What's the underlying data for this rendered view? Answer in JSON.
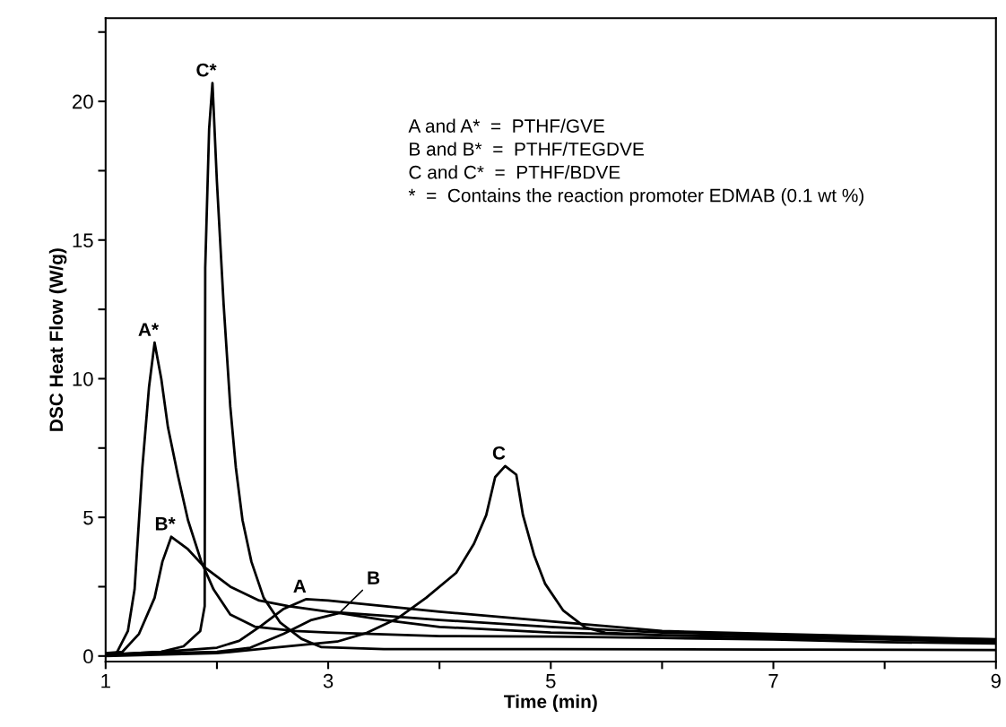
{
  "chart_data": {
    "type": "line",
    "xlabel": "Time (min)",
    "ylabel": "DSC Heat Flow (W/g)",
    "xlim": [
      1,
      9
    ],
    "ylim": [
      -0.2,
      23
    ],
    "xticks": [
      1,
      {
        "value": 2,
        "label": null
      },
      3,
      {
        "value": 4,
        "label": null
      },
      5,
      {
        "value": 6,
        "label": null
      },
      7,
      {
        "value": 8,
        "label": null
      },
      9
    ],
    "yticks": [
      0,
      {
        "value": 2.5,
        "label": null
      },
      5,
      {
        "value": 7.5,
        "label": null
      },
      10,
      {
        "value": 12.5,
        "label": null
      },
      15,
      {
        "value": 17.5,
        "label": null
      },
      20,
      {
        "value": 22.5,
        "label": null
      }
    ],
    "grid": false,
    "legend": false,
    "marker": "none",
    "line_style": "solid",
    "series": [
      {
        "name": "A*",
        "color": "#000000",
        "x": [
          1.0,
          1.1,
          1.2,
          1.26,
          1.33,
          1.39,
          1.44,
          1.5,
          1.56,
          1.65,
          1.74,
          1.86,
          1.97,
          2.12,
          2.34,
          2.7,
          3,
          4,
          5,
          6,
          7,
          8,
          9
        ],
        "values": [
          0.1,
          0.12,
          0.9,
          2.4,
          6.8,
          9.7,
          11.3,
          10.0,
          8.25,
          6.5,
          4.9,
          3.4,
          2.4,
          1.5,
          1.06,
          0.9,
          0.85,
          0.72,
          0.7,
          0.65,
          0.6,
          0.5,
          0.45
        ]
      },
      {
        "name": "B*",
        "color": "#000000",
        "x": [
          1.0,
          1.15,
          1.3,
          1.44,
          1.51,
          1.59,
          1.74,
          1.89,
          2.12,
          2.38,
          2.64,
          3.0,
          3.5,
          4,
          5,
          6,
          7,
          8,
          9
        ],
        "values": [
          0.1,
          0.15,
          0.8,
          2.1,
          3.4,
          4.3,
          3.85,
          3.2,
          2.5,
          2.0,
          1.8,
          1.6,
          1.45,
          1.3,
          1.05,
          0.85,
          0.75,
          0.65,
          0.6
        ]
      },
      {
        "name": "C*",
        "color": "#000000",
        "x": [
          1.0,
          1.5,
          1.7,
          1.85,
          1.89,
          1.895,
          1.93,
          1.96,
          2.0,
          2.06,
          2.12,
          2.17,
          2.23,
          2.31,
          2.42,
          2.57,
          2.76,
          2.94,
          3.5,
          5,
          7,
          9
        ],
        "values": [
          0.05,
          0.15,
          0.35,
          0.9,
          1.8,
          14,
          19,
          20.66,
          17.1,
          12.7,
          9.0,
          6.8,
          4.9,
          3.4,
          2.1,
          1.2,
          0.62,
          0.32,
          0.25,
          0.25,
          0.23,
          0.22
        ]
      },
      {
        "name": "A",
        "color": "#000000",
        "x": [
          1,
          1.5,
          2,
          2.2,
          2.4,
          2.6,
          2.8,
          3.0,
          3.5,
          4,
          5,
          6,
          7,
          8,
          9
        ],
        "values": [
          0.05,
          0.15,
          0.3,
          0.55,
          1.1,
          1.7,
          2.05,
          2.0,
          1.8,
          1.6,
          1.25,
          0.9,
          0.8,
          0.7,
          0.6
        ]
      },
      {
        "name": "B",
        "color": "#000000",
        "x": [
          1,
          1.5,
          2,
          2.3,
          2.6,
          2.85,
          3.1,
          3.5,
          4,
          5,
          6,
          7,
          8,
          9
        ],
        "values": [
          0.05,
          0.1,
          0.15,
          0.3,
          0.8,
          1.3,
          1.55,
          1.3,
          1.05,
          0.85,
          0.75,
          0.65,
          0.6,
          0.5
        ]
      },
      {
        "name": "C",
        "color": "#000000",
        "x": [
          1,
          2,
          2.5,
          3.08,
          3.35,
          3.62,
          3.88,
          4.15,
          4.31,
          4.42,
          4.5,
          4.59,
          4.69,
          4.75,
          4.85,
          4.95,
          5.11,
          5.31,
          5.49,
          6,
          7,
          8,
          9
        ],
        "values": [
          0.0,
          0.1,
          0.3,
          0.52,
          0.84,
          1.35,
          2.1,
          3.0,
          4.05,
          5.08,
          6.45,
          6.85,
          6.54,
          5.08,
          3.64,
          2.6,
          1.65,
          1.03,
          0.84,
          0.75,
          0.7,
          0.62,
          0.55
        ]
      }
    ],
    "annotations": [
      "A and A*  =  PTHF/GVE",
      "B and B*  =  PTHF/TEGDVE",
      "C and C*  =  PTHF/BDVE",
      "*  =  Contains the reaction promoter EDMAB (0.1 wt %)"
    ]
  }
}
